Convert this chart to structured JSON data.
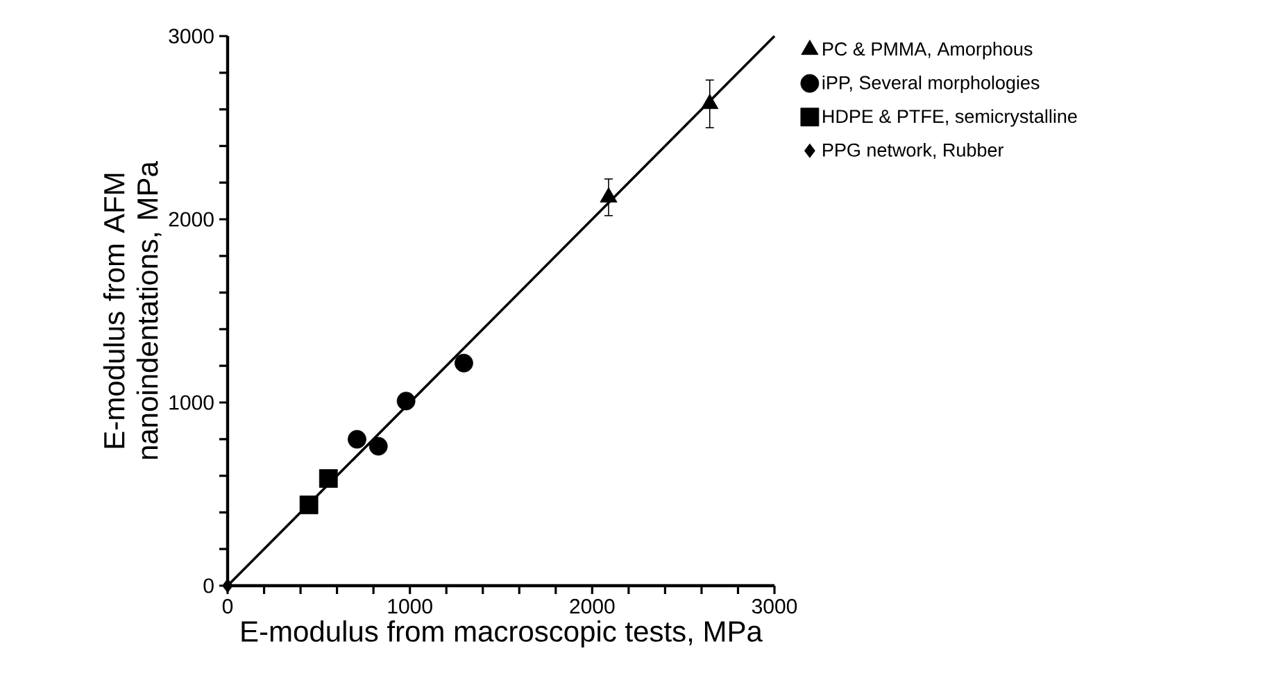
{
  "chart_data": {
    "type": "scatter",
    "xlabel": "E-modulus from macroscopic tests, MPa",
    "ylabel": "E-modulus from AFM nanoindentations, MPa",
    "xlim": [
      0,
      3000
    ],
    "ylim": [
      0,
      3000
    ],
    "xticks": [
      0,
      {
        "value": 200,
        "label": null
      },
      {
        "value": 400,
        "label": null
      },
      {
        "value": 600,
        "label": null
      },
      {
        "value": 800,
        "label": null
      },
      1000,
      {
        "value": 1200,
        "label": null
      },
      {
        "value": 1400,
        "label": null
      },
      {
        "value": 1600,
        "label": null
      },
      {
        "value": 1800,
        "label": null
      },
      2000,
      {
        "value": 2200,
        "label": null
      },
      {
        "value": 2400,
        "label": null
      },
      {
        "value": 2600,
        "label": null
      },
      {
        "value": 2800,
        "label": null
      },
      3000
    ],
    "yticks": [
      0,
      {
        "value": 200,
        "label": null
      },
      {
        "value": 400,
        "label": null
      },
      {
        "value": 600,
        "label": null
      },
      {
        "value": 800,
        "label": null
      },
      1000,
      {
        "value": 1200,
        "label": null
      },
      {
        "value": 1400,
        "label": null
      },
      {
        "value": 1600,
        "label": null
      },
      {
        "value": 1800,
        "label": null
      },
      2000,
      {
        "value": 2200,
        "label": null
      },
      {
        "value": 2400,
        "label": null
      },
      {
        "value": 2600,
        "label": null
      },
      {
        "value": 2800,
        "label": null
      },
      3000
    ],
    "legend": "right",
    "grid": false,
    "series": [
      {
        "name": "PC & PMMA, Amorphous",
        "color": "#000000",
        "marker": "triangle",
        "x": [
          2090,
          2645
        ],
        "values": [
          2120,
          2630
        ],
        "errors": [
          100,
          130
        ]
      },
      {
        "name": "iPP, Several morphologies",
        "color": "#000000",
        "marker": "circle",
        "x": [
          710,
          827,
          979,
          1296
        ],
        "values": [
          799,
          761,
          1008,
          1215
        ]
      },
      {
        "name": "HDPE & PTFE, semicrystalline",
        "color": "#000000",
        "marker": "square",
        "x": [
          446,
          553
        ],
        "values": [
          441,
          585
        ]
      },
      {
        "name": "PPG network, Rubber",
        "color": "#000000",
        "marker": "diamond",
        "x": [
          0
        ],
        "values": [
          0
        ]
      },
      {
        "type": "line",
        "color": "#000000",
        "marker": "none",
        "x": [
          0,
          3000
        ],
        "values": [
          0,
          3000
        ]
      }
    ]
  }
}
